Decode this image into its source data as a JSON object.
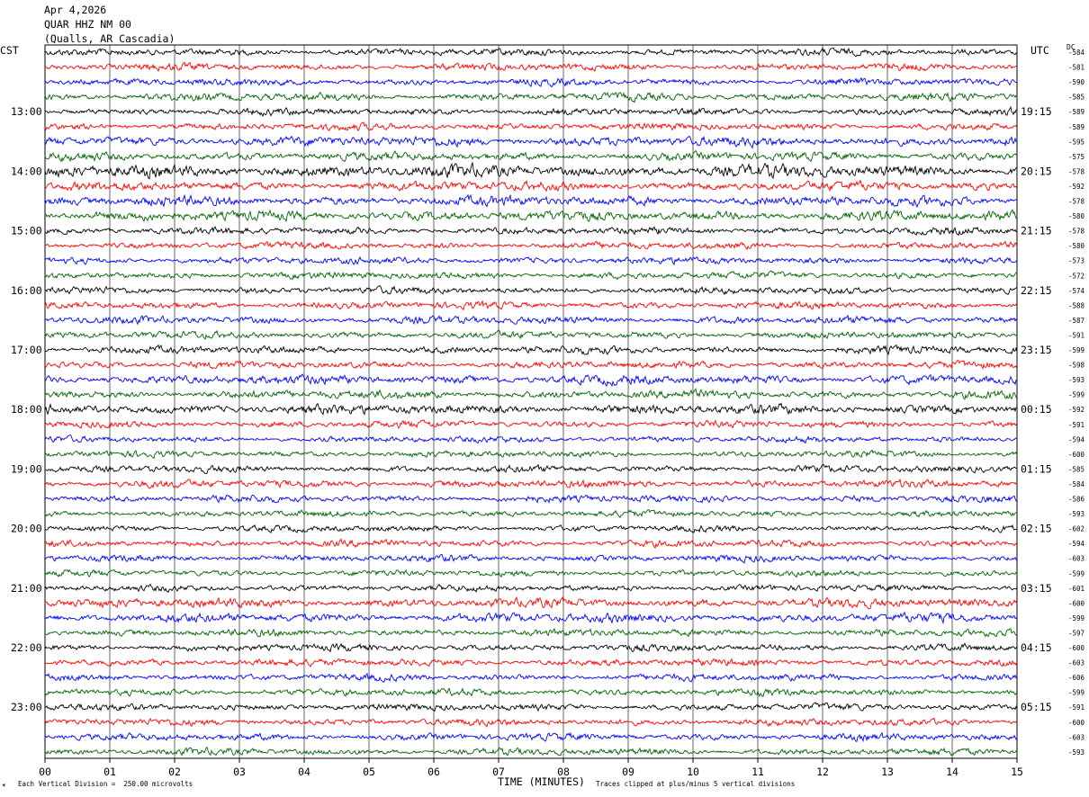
{
  "header": {
    "date": "Apr 4,2026",
    "station": "QUAR HHZ NM 00",
    "location": "(Qualls, AR Cascadia)"
  },
  "left_timezone": "CST",
  "right_timezone": "UTC",
  "dc_header": "DC",
  "footer": {
    "scale_note": "Each Vertical Division =  250.00 microvolts",
    "clip_note": "Traces clipped at plus/minus 5 vertical divisions",
    "corner_mark": "✶"
  },
  "colors": {
    "cycle": [
      "#000000",
      "#ff0000",
      "#0000ff",
      "#006400"
    ],
    "grid": "#000000"
  },
  "chart_data": {
    "type": "line",
    "xlabel": "TIME (MINUTES)",
    "xlim": [
      0,
      15
    ],
    "x_ticks": [
      "00",
      "01",
      "02",
      "03",
      "04",
      "05",
      "06",
      "07",
      "08",
      "09",
      "10",
      "11",
      "12",
      "13",
      "14",
      "15"
    ],
    "rows_per_hour": 4,
    "left_hour_labels": [
      "13:00",
      "14:00",
      "15:00",
      "16:00",
      "17:00",
      "18:00",
      "19:00",
      "20:00",
      "21:00",
      "22:00",
      "23:00"
    ],
    "right_hour_labels": [
      "19:15",
      "20:15",
      "21:15",
      "22:15",
      "23:15",
      "00:15",
      "01:15",
      "02:15",
      "03:15",
      "04:15",
      "05:15"
    ],
    "first_label_row": 4,
    "traces": [
      {
        "dc": "-584",
        "amp": 1.0
      },
      {
        "dc": "-581",
        "amp": 1.0
      },
      {
        "dc": "-590",
        "amp": 1.0
      },
      {
        "dc": "-585",
        "amp": 1.1
      },
      {
        "dc": "-589",
        "amp": 1.0
      },
      {
        "dc": "-589",
        "amp": 1.0
      },
      {
        "dc": "-595",
        "amp": 1.4
      },
      {
        "dc": "-575",
        "amp": 1.2
      },
      {
        "dc": "-578",
        "amp": 1.8
      },
      {
        "dc": "-592",
        "amp": 1.3
      },
      {
        "dc": "-578",
        "amp": 1.4
      },
      {
        "dc": "-580",
        "amp": 1.4
      },
      {
        "dc": "-578",
        "amp": 1.0
      },
      {
        "dc": "-580",
        "amp": 1.0
      },
      {
        "dc": "-573",
        "amp": 1.0
      },
      {
        "dc": "-572",
        "amp": 1.0
      },
      {
        "dc": "-574",
        "amp": 1.0
      },
      {
        "dc": "-588",
        "amp": 1.0
      },
      {
        "dc": "-587",
        "amp": 1.1
      },
      {
        "dc": "-591",
        "amp": 1.0
      },
      {
        "dc": "-599",
        "amp": 1.1
      },
      {
        "dc": "-598",
        "amp": 1.0
      },
      {
        "dc": "-593",
        "amp": 1.3
      },
      {
        "dc": "-599",
        "amp": 1.2
      },
      {
        "dc": "-592",
        "amp": 1.4
      },
      {
        "dc": "-591",
        "amp": 1.0
      },
      {
        "dc": "-594",
        "amp": 0.9
      },
      {
        "dc": "-600",
        "amp": 0.9
      },
      {
        "dc": "-585",
        "amp": 1.0
      },
      {
        "dc": "-584",
        "amp": 1.1
      },
      {
        "dc": "-586",
        "amp": 1.0
      },
      {
        "dc": "-593",
        "amp": 0.9
      },
      {
        "dc": "-602",
        "amp": 0.9
      },
      {
        "dc": "-594",
        "amp": 1.0
      },
      {
        "dc": "-603",
        "amp": 1.0
      },
      {
        "dc": "-599",
        "amp": 0.9
      },
      {
        "dc": "-601",
        "amp": 0.9
      },
      {
        "dc": "-600",
        "amp": 1.3
      },
      {
        "dc": "-599",
        "amp": 1.3
      },
      {
        "dc": "-597",
        "amp": 1.0
      },
      {
        "dc": "-600",
        "amp": 1.0
      },
      {
        "dc": "-603",
        "amp": 1.0
      },
      {
        "dc": "-606",
        "amp": 1.0
      },
      {
        "dc": "-599",
        "amp": 1.0
      },
      {
        "dc": "-591",
        "amp": 1.0
      },
      {
        "dc": "-600",
        "amp": 1.0
      },
      {
        "dc": "-603",
        "amp": 1.0
      },
      {
        "dc": "-593",
        "amp": 1.0
      }
    ]
  }
}
